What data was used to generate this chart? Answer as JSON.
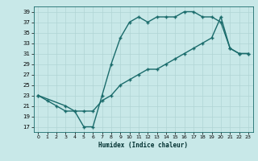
{
  "xlabel": "Humidex (Indice chaleur)",
  "ylabel": "",
  "bg_color": "#c8e8e8",
  "grid_color": "#b0d4d4",
  "line_color": "#1a6b6b",
  "xlim": [
    -0.5,
    23.5
  ],
  "ylim": [
    16,
    40
  ],
  "xticks": [
    0,
    1,
    2,
    3,
    4,
    5,
    6,
    7,
    8,
    9,
    10,
    11,
    12,
    13,
    14,
    15,
    16,
    17,
    18,
    19,
    20,
    21,
    22,
    23
  ],
  "yticks": [
    17,
    19,
    21,
    23,
    25,
    27,
    29,
    31,
    33,
    35,
    37,
    39
  ],
  "curve1_x": [
    0,
    1,
    2,
    3,
    4,
    5,
    6,
    7,
    8,
    9,
    10,
    11,
    12,
    13,
    14,
    15,
    16,
    17,
    18,
    19,
    20,
    21,
    22,
    23
  ],
  "curve1_y": [
    23,
    22,
    21,
    20,
    20,
    17,
    17,
    23,
    29,
    34,
    37,
    38,
    37,
    38,
    38,
    38,
    39,
    39,
    38,
    38,
    37,
    32,
    31,
    31
  ],
  "curve2_x": [
    0,
    3,
    4,
    5,
    6,
    7,
    8,
    9,
    10,
    11,
    12,
    13,
    14,
    15,
    16,
    17,
    18,
    19,
    20,
    21,
    22,
    23
  ],
  "curve2_y": [
    23,
    21,
    20,
    20,
    20,
    22,
    23,
    25,
    26,
    27,
    28,
    28,
    29,
    30,
    31,
    32,
    33,
    34,
    38,
    32,
    31,
    31
  ],
  "marker": "+",
  "markersize": 3.5,
  "linewidth": 1.0
}
